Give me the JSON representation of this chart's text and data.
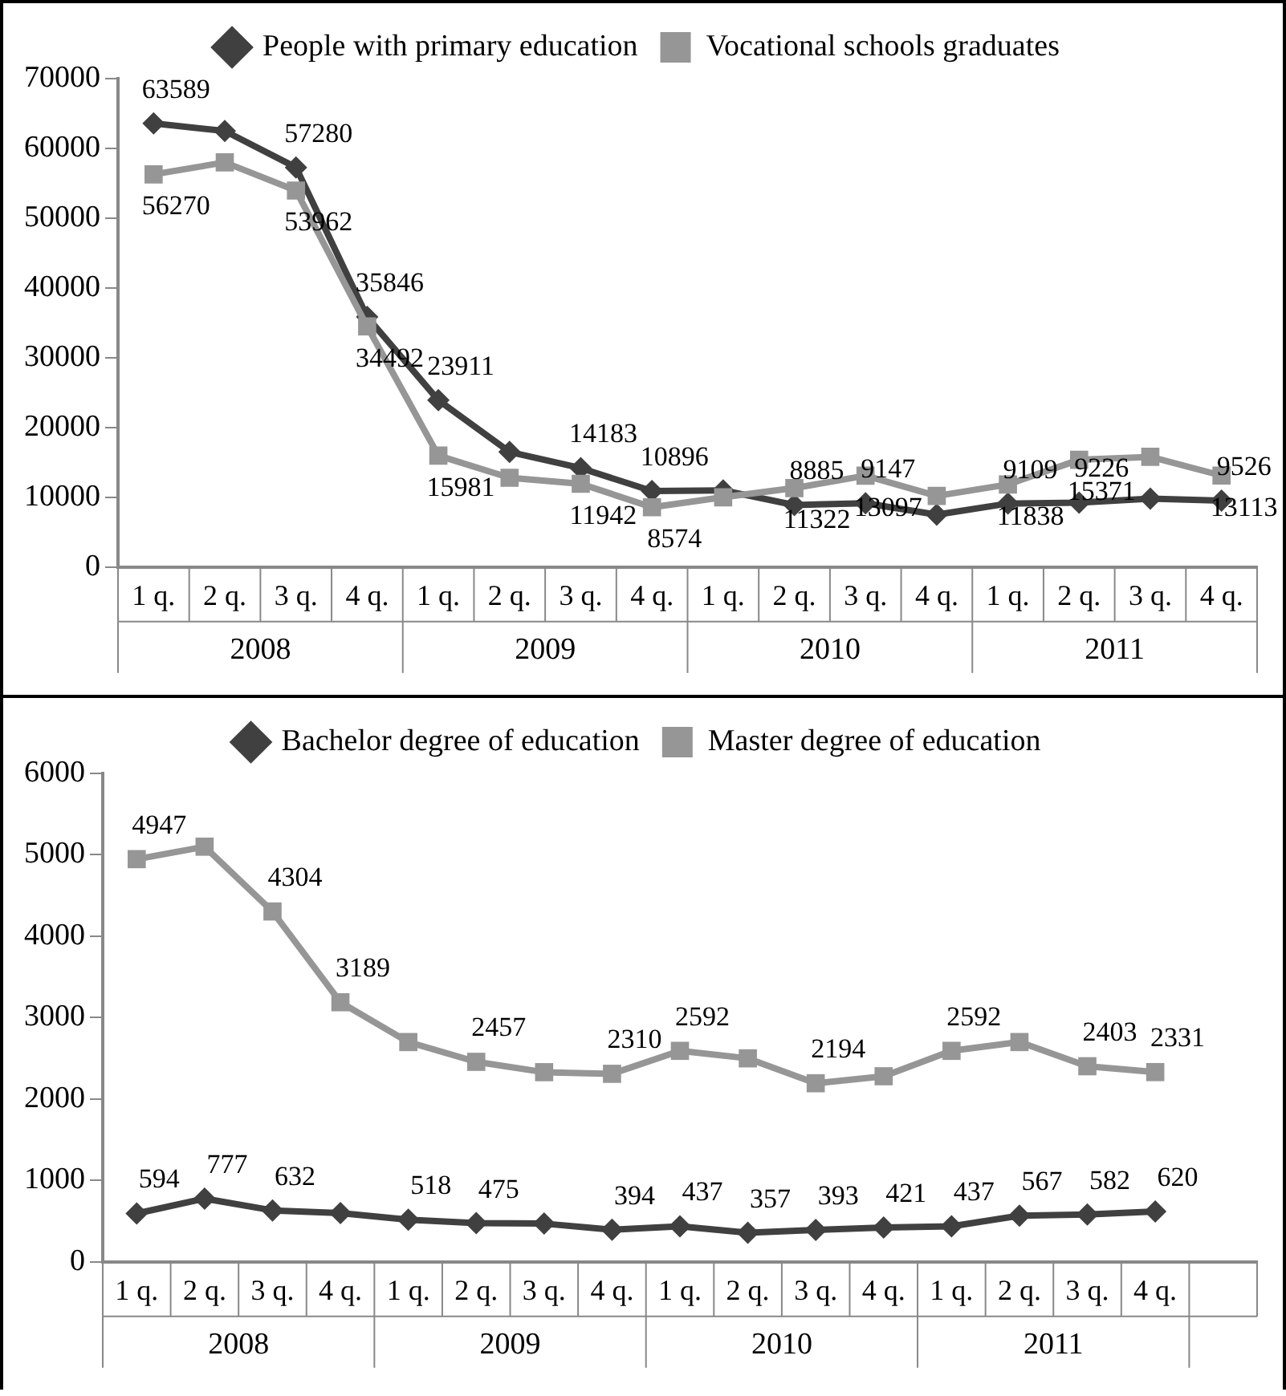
{
  "chart_data": [
    {
      "type": "line",
      "categories": [
        "1 q.",
        "2 q.",
        "3 q.",
        "4 q.",
        "1 q.",
        "2 q.",
        "3 q.",
        "4 q.",
        "1 q.",
        "2 q.",
        "3 q.",
        "4 q.",
        "1 q.",
        "2 q.",
        "3 q.",
        "4 q."
      ],
      "annotations": [
        "2008",
        "2009",
        "2010",
        "2011"
      ],
      "series": [
        {
          "name": "People with primary education",
          "color": "#404040",
          "marker": "diamond",
          "values": [
            63589,
            62500,
            57280,
            35846,
            23911,
            16500,
            14183,
            10896,
            11000,
            8885,
            9147,
            7500,
            9109,
            9226,
            9800,
            9526
          ],
          "value_labels": [
            "63589",
            null,
            "57280",
            "35846",
            "23911",
            null,
            "14183",
            "10896",
            null,
            "8885",
            "9147",
            null,
            "9109",
            "9226",
            null,
            "9526"
          ]
        },
        {
          "name": "Vocational schools graduates",
          "color": "#969696",
          "marker": "square",
          "values": [
            56270,
            58000,
            53962,
            34492,
            15981,
            12800,
            11942,
            8574,
            10000,
            11322,
            13097,
            10200,
            11838,
            15371,
            15800,
            13113
          ],
          "value_labels": [
            "56270",
            null,
            "53962",
            "34492",
            "15981",
            null,
            "11942",
            "8574",
            null,
            "11322",
            "13097",
            null,
            "11838",
            "15371",
            null,
            "13113"
          ]
        }
      ],
      "ylim": [
        0,
        70000
      ],
      "yticks": [
        0,
        10000,
        20000,
        30000,
        40000,
        50000,
        60000,
        70000
      ],
      "legend": "top",
      "line_style": "solid"
    },
    {
      "type": "line",
      "categories": [
        "1 q.",
        "2 q.",
        "3 q.",
        "4 q.",
        "1 q.",
        "2 q.",
        "3 q.",
        "4 q.",
        "1 q.",
        "2 q.",
        "3 q.",
        "4 q.",
        "1 q.",
        "2 q.",
        "3 q.",
        "4 q.",
        null
      ],
      "annotations": [
        "2008",
        "2009",
        "2010",
        "2011"
      ],
      "series": [
        {
          "name": "Bachelor degree of education",
          "color": "#404040",
          "marker": "diamond",
          "values": [
            594,
            777,
            632,
            600,
            518,
            475,
            470,
            394,
            437,
            357,
            393,
            421,
            437,
            567,
            582,
            620,
            null
          ],
          "value_labels": [
            "594",
            "777",
            "632",
            null,
            "518",
            "475",
            null,
            "394",
            "437",
            "357",
            "393",
            "421",
            "437",
            "567",
            "582",
            "620",
            null
          ]
        },
        {
          "name": "Master degree of education",
          "color": "#969696",
          "marker": "square",
          "values": [
            4947,
            5100,
            4304,
            3189,
            2700,
            2457,
            2330,
            2310,
            2592,
            2500,
            2194,
            2280,
            2592,
            2700,
            2403,
            2331,
            null
          ],
          "value_labels": [
            "4947",
            null,
            "4304",
            "3189",
            null,
            "2457",
            null,
            "2310",
            "2592",
            null,
            "2194",
            null,
            "2592",
            null,
            "2403",
            "2331",
            null
          ]
        }
      ],
      "ylim": [
        0,
        6000
      ],
      "yticks": [
        0,
        1000,
        2000,
        3000,
        4000,
        5000,
        6000
      ],
      "legend": "top",
      "line_style": "solid"
    }
  ]
}
